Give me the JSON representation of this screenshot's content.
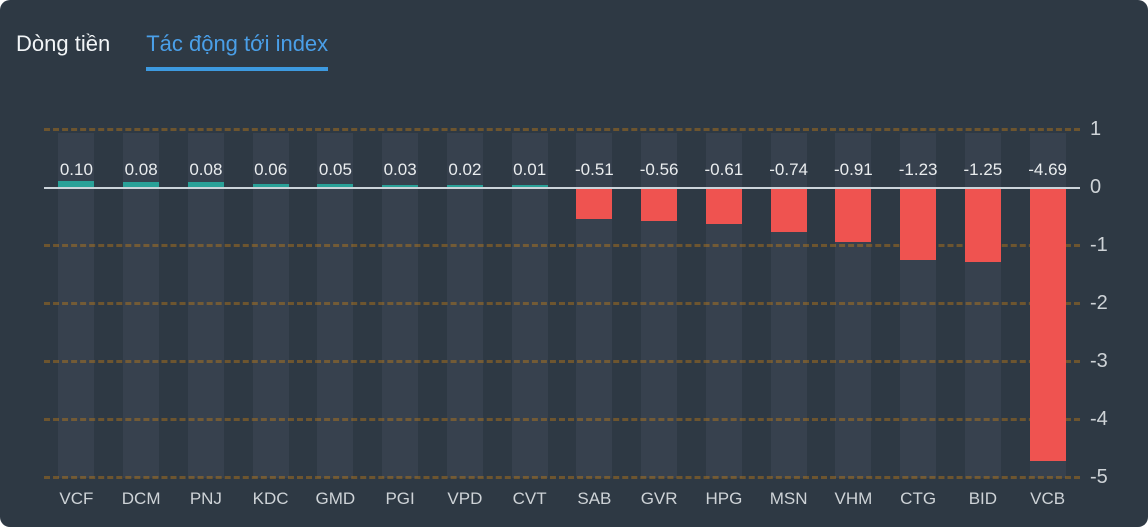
{
  "tabs": [
    {
      "label": "Dòng tiền",
      "active": false
    },
    {
      "label": "Tác động tới index",
      "active": true
    }
  ],
  "colors": {
    "background": "#2e3944",
    "column_band": "#37414e",
    "positive_bar": "#2aa198",
    "negative_bar": "#ef5350",
    "zero_line": "#ccd4da",
    "gridline_dash": "rgba(255,152,0,0.30)",
    "active_tab_text": "#4a9fe8",
    "active_tab_underline": "#3d9ae0",
    "value_label_text": "#e9ecee",
    "axis_label_text": "#ced3d7"
  },
  "chart_data": {
    "type": "bar",
    "title": "Tác động tới index",
    "categories": [
      "VCF",
      "DCM",
      "PNJ",
      "KDC",
      "GMD",
      "PGI",
      "VPD",
      "CVT",
      "SAB",
      "GVR",
      "HPG",
      "MSN",
      "VHM",
      "CTG",
      "BID",
      "VCB"
    ],
    "values": [
      0.1,
      0.08,
      0.08,
      0.06,
      0.05,
      0.03,
      0.02,
      0.01,
      -0.51,
      -0.56,
      -0.61,
      -0.74,
      -0.91,
      -1.23,
      -1.25,
      -4.69
    ],
    "value_labels": [
      "0.10",
      "0.08",
      "0.08",
      "0.06",
      "0.05",
      "0.03",
      "0.02",
      "0.01",
      "-0.51",
      "-0.56",
      "-0.61",
      "-0.74",
      "-0.91",
      "-1.23",
      "-1.25",
      "-4.69"
    ],
    "y_ticks": [
      1,
      0,
      -1,
      -2,
      -3,
      -4,
      -5
    ],
    "y_tick_labels": [
      "1",
      "0",
      "-1",
      "-2",
      "-3",
      "-4",
      "-5"
    ],
    "ylim": [
      -5,
      1
    ],
    "xlabel": "",
    "ylabel": "",
    "grid": "horizontal-dashed",
    "legend_position": "none",
    "value_label_position": "above-zero-line"
  }
}
